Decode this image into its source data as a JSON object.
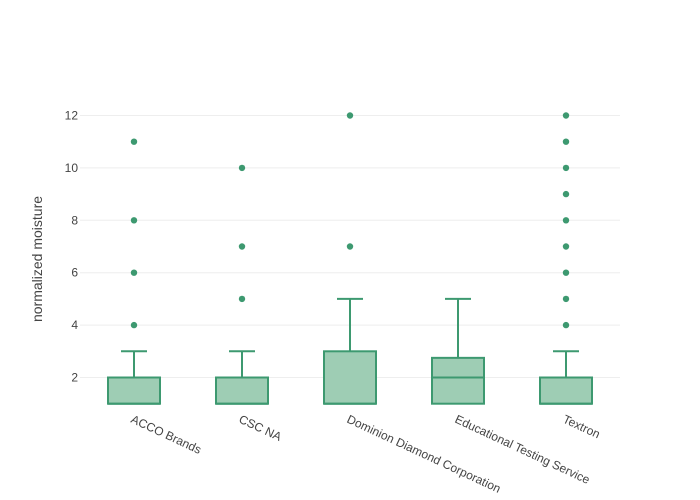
{
  "chart_data": {
    "type": "box",
    "title": "",
    "xlabel": "",
    "ylabel": "normalized moisture",
    "ylim": [
      0.7,
      12.5
    ],
    "yticks": [
      2,
      4,
      6,
      8,
      10,
      12
    ],
    "grid": true,
    "color": "#3d9970",
    "fill": "#9ecdb4",
    "categories": [
      "ACCO Brands",
      "CSC NA",
      "Dominion Diamond Corporation",
      "Educational Testing Service",
      "Textron"
    ],
    "boxes": [
      {
        "min": 1,
        "q1": 1,
        "median": 1,
        "q3": 2,
        "upper_whisker": 3,
        "outliers": [
          4,
          6,
          8,
          11
        ]
      },
      {
        "min": 1,
        "q1": 1,
        "median": 1,
        "q3": 2,
        "upper_whisker": 3,
        "outliers": [
          5,
          7,
          10
        ]
      },
      {
        "min": 1,
        "q1": 1,
        "median": 1,
        "q3": 3,
        "upper_whisker": 5,
        "outliers": [
          7,
          12
        ]
      },
      {
        "min": 1,
        "q1": 1,
        "median": 2,
        "q3": 2.75,
        "upper_whisker": 5,
        "outliers": []
      },
      {
        "min": 1,
        "q1": 1,
        "median": 1,
        "q3": 2,
        "upper_whisker": 3,
        "outliers": [
          4,
          5,
          6,
          7,
          8,
          9,
          10,
          11,
          12
        ]
      }
    ]
  }
}
